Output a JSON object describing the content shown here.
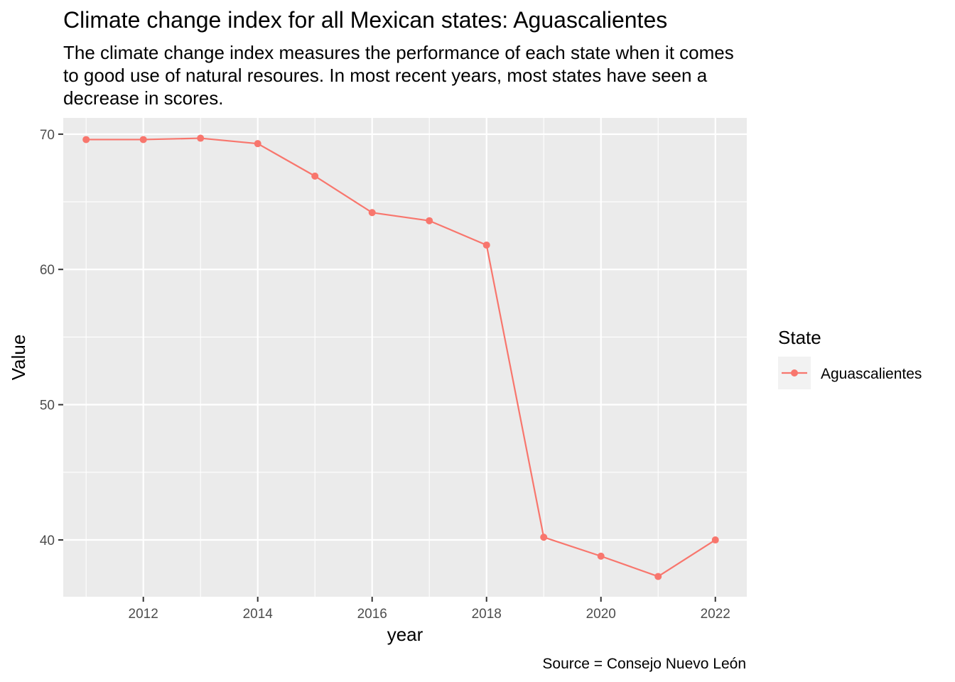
{
  "chart_data": {
    "type": "line",
    "title": "Climate change index for all Mexican states: Aguascalientes",
    "subtitle_lines": [
      "The climate change index measures the performance of each state when it comes",
      "to good use of natural resoures. In most recent years, most states have seen a",
      "decrease in scores."
    ],
    "xlabel": "year",
    "ylabel": "Value",
    "caption": "Source = Consejo Nuevo León",
    "x": [
      2011,
      2012,
      2013,
      2014,
      2015,
      2016,
      2017,
      2018,
      2019,
      2020,
      2021,
      2022
    ],
    "series": [
      {
        "name": "Aguascalientes",
        "color": "#F8766D",
        "values": [
          69.6,
          69.6,
          69.7,
          69.3,
          66.9,
          64.2,
          63.6,
          61.8,
          40.2,
          38.8,
          37.3,
          40.0
        ]
      }
    ],
    "xlim": [
      2010.6,
      2022.55
    ],
    "ylim": [
      35.8,
      71.2
    ],
    "x_ticks": [
      2012,
      2014,
      2016,
      2018,
      2020,
      2022
    ],
    "x_tick_labels": [
      "2012",
      "2014",
      "2016",
      "2018",
      "2020",
      "2022"
    ],
    "x_minor_ticks": [
      2011,
      2013,
      2015,
      2017,
      2019,
      2021
    ],
    "y_ticks": [
      40,
      50,
      60,
      70
    ],
    "y_tick_labels": [
      "40",
      "50",
      "60",
      "70"
    ],
    "y_minor_ticks": [
      45,
      55,
      65
    ],
    "grid": true,
    "panel_background": "#EBEBEB",
    "grid_color": "#FFFFFF",
    "legend": {
      "title": "State",
      "placement": "right",
      "key_background": "#F2F2F2"
    }
  }
}
